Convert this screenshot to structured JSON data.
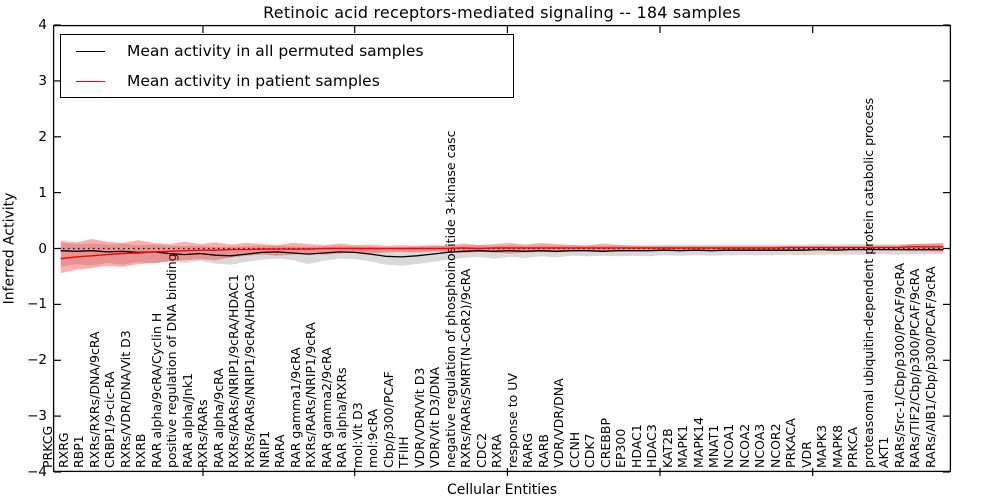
{
  "title": "Retinoic acid receptors-mediated signaling -- 184 samples",
  "axes": {
    "xlabel": "Cellular Entities",
    "ylabel": "Inferred Activity",
    "y_tick_labels": [
      "4",
      "3",
      "2",
      "1",
      "0",
      "−1",
      "−2",
      "−3",
      "−4"
    ]
  },
  "legend": {
    "entries": [
      {
        "label": "Mean activity in all permuted samples",
        "color": "#000000"
      },
      {
        "label": "Mean activity in patient samples",
        "color": "#ff0000"
      }
    ]
  },
  "colors": {
    "permuted_line": "#000000",
    "patient_line": "#ff0000",
    "permuted_band": "rgba(0,0,0,0.15)",
    "patient_band": "rgba(255,0,0,0.32)",
    "zero_line": "#000000",
    "frame": "#000000"
  },
  "chart_data": {
    "type": "line",
    "title": "Retinoic acid receptors-mediated signaling -- 184 samples",
    "xlabel": "Cellular Entities",
    "ylabel": "Inferred Activity",
    "ylim": [
      -4,
      4
    ],
    "grid": false,
    "legend_position": "upper left",
    "zero_reference_line": 0,
    "categories": [
      "PRKCG",
      "RXRG",
      "RBP1",
      "RXRs/RXRs/DNA/9cRA",
      "CRBP1/9-cic-RA",
      "RXRs/VDR/DNA/Vit D3",
      "RXRB",
      "RAR alpha/9cRA/Cyclin H",
      "positive regulation of DNA binding",
      "RAR alpha/Jnk1",
      "RXRs/RARs",
      "RAR alpha/9cRA",
      "RXRs/RARs/NRIP1/9cRA/HDAC1",
      "RXRs/RARs/NRIP1/9cRA/HDAC3",
      "NRIP1",
      "RARA",
      "RAR gamma1/9cRA",
      "RXRs/RARs/NRIP1/9cRA",
      "RAR gamma2/9cRA",
      "RAR alpha/RXRs",
      "mol:Vit D3",
      "mol:9cRA",
      "Cbp/p300/PCAF",
      "TFIIH",
      "VDR/VDR/Vit D3",
      "VDR/Vit D3/DNA",
      "negative regulation of phosphoinositide 3-kinase casc",
      "RXRs/RARs/SMRT(N-CoR2)/9cRA",
      "CDC2",
      "RXRA",
      "response to UV",
      "RARG",
      "RARB",
      "VDR/VDR/DNA",
      "CCNH",
      "CDK7",
      "CREBBP",
      "EP300",
      "HDAC1",
      "HDAC3",
      "KAT2B",
      "MAPK1",
      "MAPK14",
      "MNAT1",
      "NCOA1",
      "NCOA2",
      "NCOA3",
      "NCOR2",
      "PRKACA",
      "VDR",
      "MAPK3",
      "MAPK8",
      "PRKCA",
      "proteasomal ubiquitin-dependent protein catabolic process",
      "AKT1",
      "RARs/Src-1/Cbp/p300/PCAF/9cRA",
      "RARs/TIF2/Cbp/p300/PCAF/9cRA",
      "RARs/AIB1/Cbp/p300/PCAF/9cRA"
    ],
    "series": [
      {
        "name": "Mean activity in all permuted samples",
        "role": "permuted_mean",
        "color": "#000000",
        "values": [
          -0.04,
          -0.05,
          -0.04,
          -0.06,
          -0.05,
          -0.07,
          -0.06,
          -0.09,
          -0.11,
          -0.09,
          -0.12,
          -0.13,
          -0.1,
          -0.07,
          -0.06,
          -0.08,
          -0.1,
          -0.08,
          -0.06,
          -0.07,
          -0.1,
          -0.14,
          -0.15,
          -0.13,
          -0.1,
          -0.07,
          -0.05,
          -0.04,
          -0.05,
          -0.04,
          -0.05,
          -0.04,
          -0.05,
          -0.04,
          -0.04,
          -0.05,
          -0.04,
          -0.04,
          -0.04,
          -0.03,
          -0.04,
          -0.03,
          -0.04,
          -0.03,
          -0.03,
          -0.03,
          -0.03,
          -0.03,
          -0.03,
          -0.02,
          -0.03,
          -0.02,
          -0.02,
          -0.02,
          -0.02,
          -0.02,
          -0.02,
          -0.02
        ]
      },
      {
        "name": "Permuted band upper",
        "role": "permuted_upper",
        "values": [
          0.1,
          0.08,
          0.09,
          0.07,
          0.08,
          0.06,
          0.07,
          0.05,
          0.04,
          0.05,
          0.03,
          0.03,
          0.04,
          0.05,
          0.05,
          0.04,
          0.03,
          0.04,
          0.05,
          0.04,
          0.03,
          0.02,
          0.02,
          0.03,
          0.04,
          0.05,
          0.05,
          0.06,
          0.05,
          0.06,
          0.05,
          0.06,
          0.05,
          0.06,
          0.06,
          0.05,
          0.06,
          0.06,
          0.06,
          0.07,
          0.06,
          0.07,
          0.06,
          0.07,
          0.07,
          0.07,
          0.07,
          0.07,
          0.07,
          0.08,
          0.07,
          0.08,
          0.08,
          0.08,
          0.08,
          0.08,
          0.08,
          0.08
        ]
      },
      {
        "name": "Permuted band lower",
        "role": "permuted_lower",
        "values": [
          -0.33,
          -0.28,
          -0.31,
          -0.26,
          -0.29,
          -0.24,
          -0.27,
          -0.23,
          -0.26,
          -0.22,
          -0.27,
          -0.29,
          -0.24,
          -0.2,
          -0.18,
          -0.21,
          -0.28,
          -0.22,
          -0.18,
          -0.19,
          -0.23,
          -0.29,
          -0.31,
          -0.28,
          -0.24,
          -0.2,
          -0.17,
          -0.15,
          -0.18,
          -0.15,
          -0.17,
          -0.14,
          -0.16,
          -0.13,
          -0.14,
          -0.13,
          -0.14,
          -0.13,
          -0.14,
          -0.12,
          -0.13,
          -0.12,
          -0.13,
          -0.12,
          -0.12,
          -0.12,
          -0.12,
          -0.11,
          -0.12,
          -0.11,
          -0.11,
          -0.11,
          -0.11,
          -0.1,
          -0.11,
          -0.1,
          -0.1,
          -0.1
        ]
      },
      {
        "name": "Mean activity in patient samples",
        "role": "patient_mean",
        "color": "#ff0000",
        "values": [
          -0.18,
          -0.15,
          -0.13,
          -0.11,
          -0.09,
          -0.08,
          -0.06,
          -0.05,
          -0.04,
          -0.03,
          -0.03,
          -0.02,
          -0.02,
          -0.01,
          -0.01,
          -0.01,
          -0.01,
          0.0,
          0.0,
          0.0,
          0.0,
          0.0,
          0.0,
          0.0,
          0.0,
          0.0,
          0.01,
          0.0,
          0.01,
          0.01,
          0.01,
          0.01,
          0.01,
          0.01,
          0.01,
          0.01,
          0.01,
          0.01,
          0.01,
          0.01,
          0.01,
          0.01,
          0.01,
          0.01,
          0.01,
          0.01,
          0.01,
          0.02,
          0.02,
          0.02,
          0.02,
          0.02,
          0.02,
          0.02,
          0.02,
          0.03,
          0.03,
          0.03
        ]
      },
      {
        "name": "Patient band upper",
        "role": "patient_upper",
        "values": [
          0.14,
          0.11,
          0.17,
          0.12,
          0.1,
          0.15,
          0.1,
          0.08,
          0.12,
          0.08,
          0.11,
          0.07,
          0.1,
          0.08,
          0.06,
          0.1,
          0.08,
          0.06,
          0.09,
          0.06,
          0.07,
          0.05,
          0.06,
          0.05,
          0.06,
          0.05,
          0.09,
          0.06,
          0.08,
          0.1,
          0.07,
          0.1,
          0.08,
          0.06,
          0.05,
          0.09,
          0.06,
          0.05,
          0.04,
          0.04,
          0.04,
          0.04,
          0.04,
          0.04,
          0.04,
          0.04,
          0.04,
          0.04,
          0.04,
          0.04,
          0.04,
          0.04,
          0.04,
          0.05,
          0.05,
          0.08,
          0.09,
          0.1
        ]
      },
      {
        "name": "Patient band lower",
        "role": "patient_lower",
        "values": [
          -0.44,
          -0.38,
          -0.35,
          -0.31,
          -0.33,
          -0.28,
          -0.26,
          -0.23,
          -0.21,
          -0.19,
          -0.21,
          -0.16,
          -0.13,
          -0.11,
          -0.13,
          -0.11,
          -0.09,
          -0.11,
          -0.09,
          -0.07,
          -0.09,
          -0.07,
          -0.06,
          -0.07,
          -0.05,
          -0.06,
          -0.08,
          -0.06,
          -0.07,
          -0.09,
          -0.07,
          -0.06,
          -0.07,
          -0.05,
          -0.04,
          -0.05,
          -0.04,
          -0.04,
          -0.03,
          -0.03,
          -0.03,
          -0.03,
          -0.03,
          -0.03,
          -0.03,
          -0.03,
          -0.03,
          -0.02,
          -0.02,
          -0.02,
          -0.02,
          -0.02,
          -0.02,
          -0.03,
          -0.03,
          -0.05,
          -0.05,
          -0.06
        ]
      }
    ]
  }
}
